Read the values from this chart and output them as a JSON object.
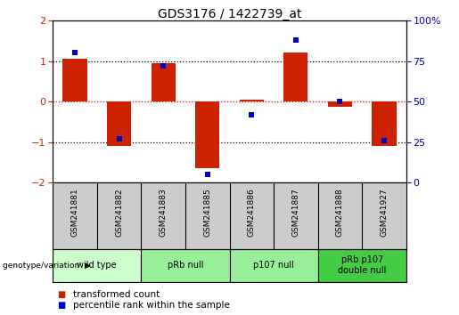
{
  "title": "GDS3176 / 1422739_at",
  "samples": [
    "GSM241881",
    "GSM241882",
    "GSM241883",
    "GSM241885",
    "GSM241886",
    "GSM241887",
    "GSM241888",
    "GSM241927"
  ],
  "transformed_count": [
    1.05,
    -1.1,
    0.95,
    -1.65,
    0.05,
    1.2,
    -0.12,
    -1.1
  ],
  "percentile_rank": [
    80,
    27,
    72,
    5,
    42,
    88,
    50,
    26
  ],
  "ylim_left": [
    -2,
    2
  ],
  "ylim_right": [
    0,
    100
  ],
  "yticks_left": [
    -2,
    -1,
    0,
    1,
    2
  ],
  "yticks_right": [
    0,
    25,
    50,
    75,
    100
  ],
  "bar_color": "#cc2200",
  "dot_color": "#0000cc",
  "bar_width": 0.55,
  "groups": [
    {
      "label": "wild type",
      "samples": [
        0,
        1
      ],
      "color": "#ccffcc"
    },
    {
      "label": "pRb null",
      "samples": [
        2,
        3
      ],
      "color": "#99ee99"
    },
    {
      "label": "p107 null",
      "samples": [
        4,
        5
      ],
      "color": "#99ee99"
    },
    {
      "label": "pRb p107\ndouble null",
      "samples": [
        6,
        7
      ],
      "color": "#44cc44"
    }
  ],
  "legend_bar_label": "transformed count",
  "legend_dot_label": "percentile rank within the sample",
  "genotype_label": "genotype/variation",
  "tick_color_left": "#cc2200",
  "tick_color_right": "#0000cc",
  "sample_box_color": "#cccccc",
  "background_color": "#ffffff"
}
